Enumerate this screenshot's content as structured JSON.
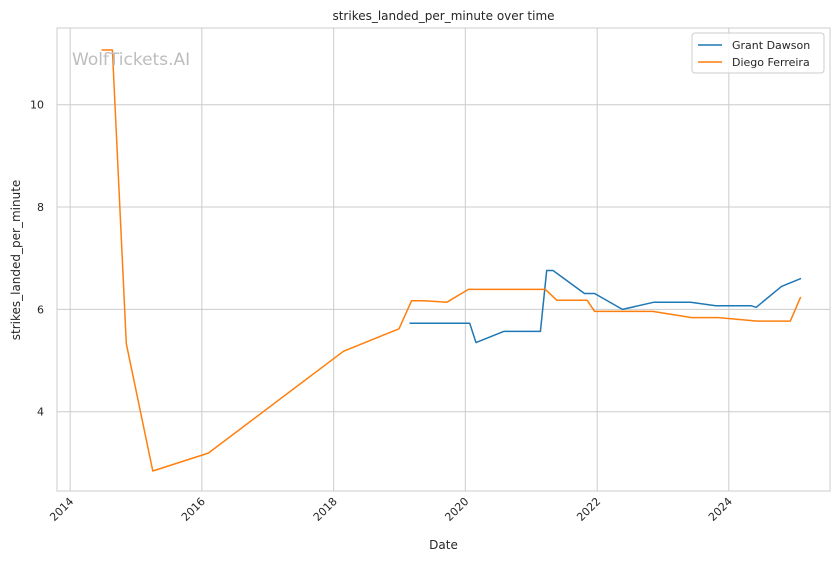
{
  "chart_data": {
    "type": "line",
    "title": "strikes_landed_per_minute over time",
    "xlabel": "Date",
    "ylabel": "strikes_landed_per_minute",
    "xlim": [
      "2013-10-20",
      "2025-07-15"
    ],
    "ylim": [
      2.45,
      11.5
    ],
    "x_ticks": [
      "2014-01-01",
      "2016-01-01",
      "2018-01-01",
      "2020-01-01",
      "2022-01-01",
      "2024-01-01"
    ],
    "x_tick_labels": [
      "2014",
      "2016",
      "2018",
      "2020",
      "2022",
      "2024"
    ],
    "y_ticks": [
      4,
      6,
      8,
      10
    ],
    "y_tick_labels": [
      "4",
      "6",
      "8",
      "10"
    ],
    "grid": true,
    "legend": "top-right",
    "watermark": "WolfTickets.AI",
    "series": [
      {
        "name": "Grant Dawson",
        "color": "#1f77b4",
        "points": [
          [
            "2019-03-02",
            5.73
          ],
          [
            "2020-01-25",
            5.73
          ],
          [
            "2020-02-29",
            5.35
          ],
          [
            "2020-08-01",
            5.57
          ],
          [
            "2021-02-20",
            5.57
          ],
          [
            "2021-03-27",
            6.76
          ],
          [
            "2021-05-01",
            6.76
          ],
          [
            "2021-10-23",
            6.31
          ],
          [
            "2021-12-18",
            6.31
          ],
          [
            "2022-05-21",
            6.0
          ],
          [
            "2022-11-12",
            6.14
          ],
          [
            "2023-06-03",
            6.14
          ],
          [
            "2023-10-21",
            6.07
          ],
          [
            "2024-05-04",
            6.07
          ],
          [
            "2024-06-01",
            6.04
          ],
          [
            "2024-10-19",
            6.45
          ],
          [
            "2025-02-01",
            6.6
          ]
        ]
      },
      {
        "name": "Diego Ferreira",
        "color": "#ff7f0e",
        "points": [
          [
            "2014-06-28",
            11.07
          ],
          [
            "2014-08-23",
            11.07
          ],
          [
            "2014-11-08",
            5.33
          ],
          [
            "2015-04-04",
            2.84
          ],
          [
            "2016-02-06",
            3.19
          ],
          [
            "2018-02-24",
            5.18
          ],
          [
            "2018-12-29",
            5.62
          ],
          [
            "2019-03-09",
            6.17
          ],
          [
            "2019-05-18",
            6.17
          ],
          [
            "2019-09-21",
            6.14
          ],
          [
            "2020-01-18",
            6.39
          ],
          [
            "2021-03-20",
            6.39
          ],
          [
            "2021-05-22",
            6.18
          ],
          [
            "2021-11-06",
            6.18
          ],
          [
            "2021-12-18",
            5.96
          ],
          [
            "2022-11-05",
            5.96
          ],
          [
            "2023-06-10",
            5.84
          ],
          [
            "2023-11-04",
            5.84
          ],
          [
            "2024-06-08",
            5.77
          ],
          [
            "2024-12-07",
            5.77
          ],
          [
            "2025-02-01",
            6.23
          ]
        ]
      }
    ]
  }
}
